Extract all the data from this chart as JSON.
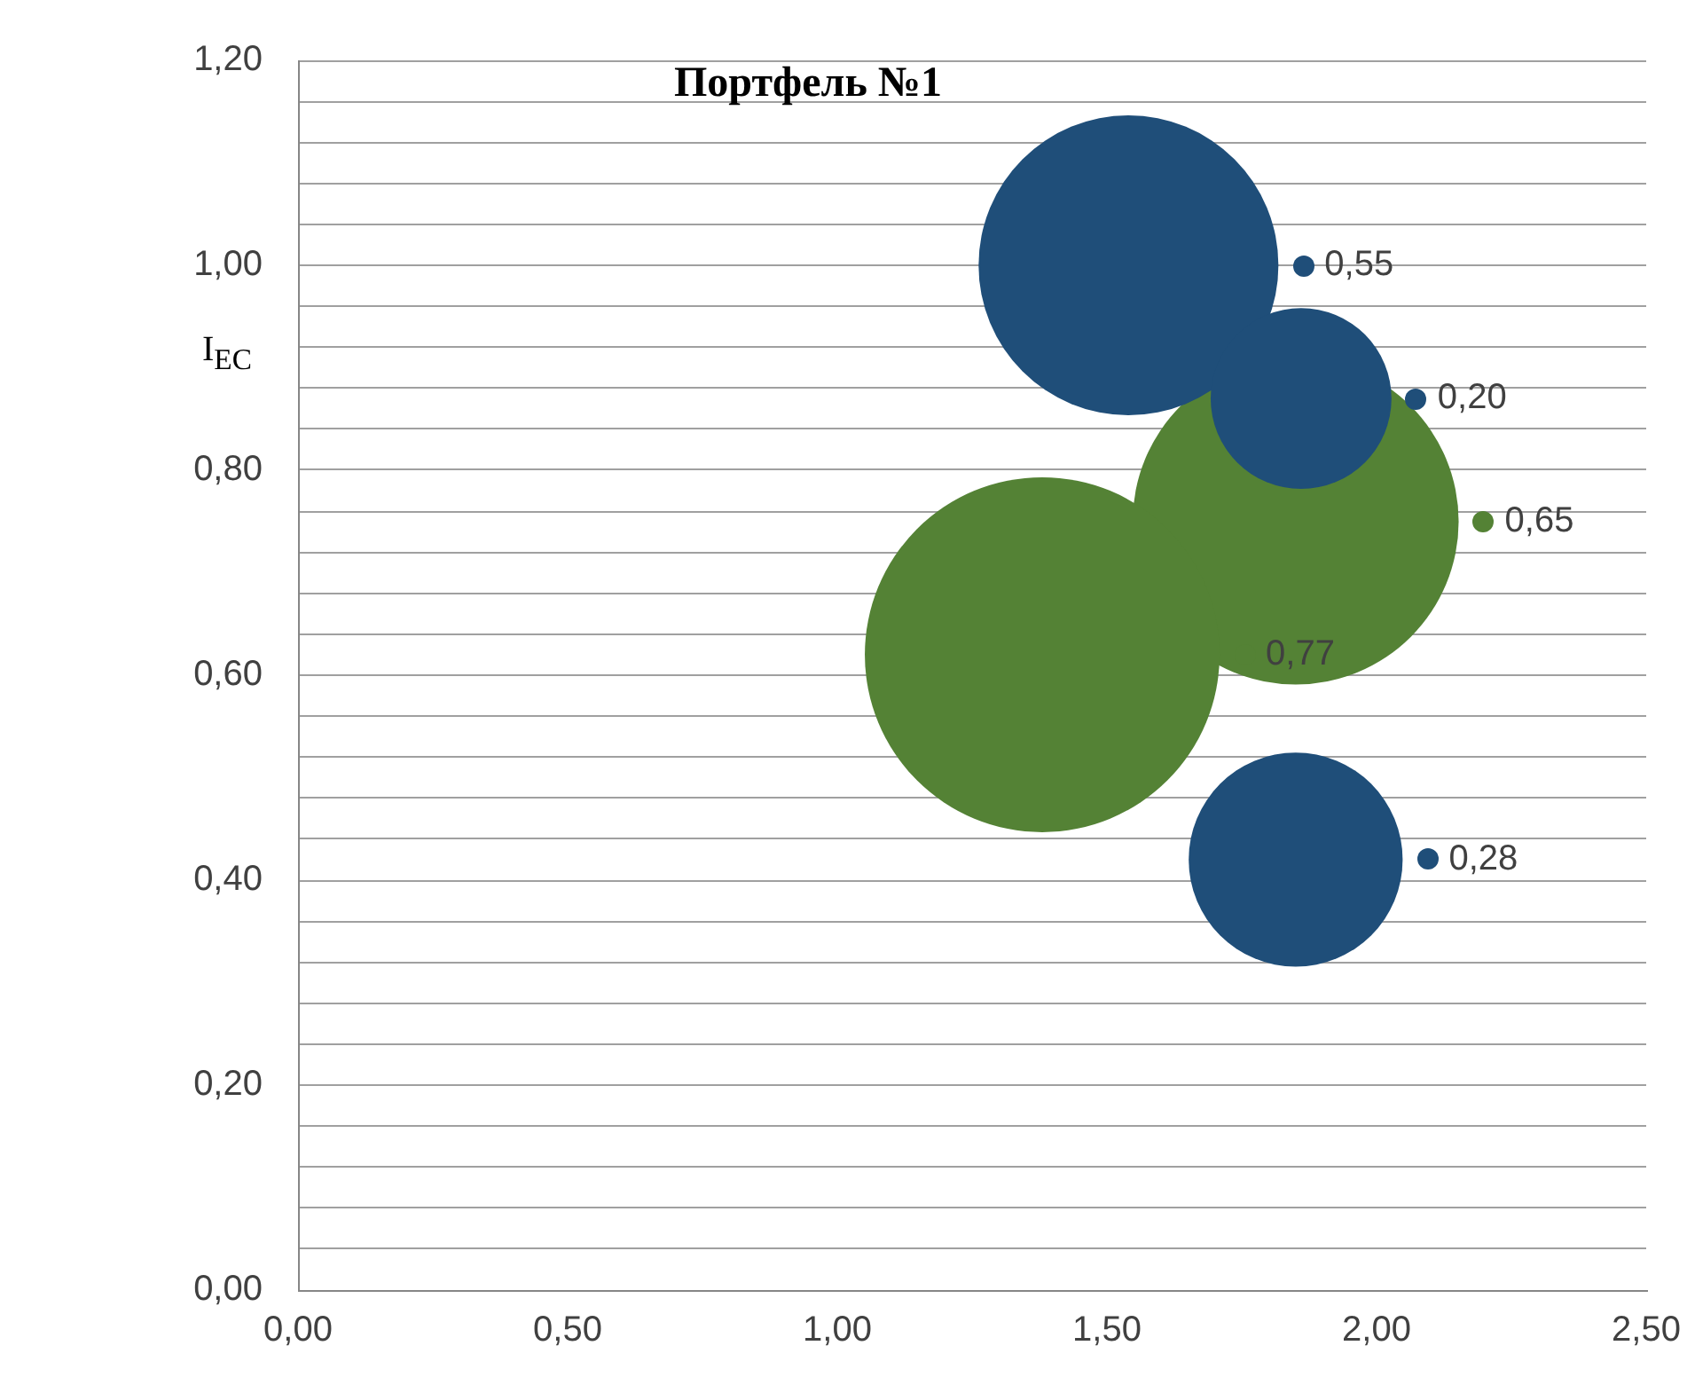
{
  "chart_data": {
    "type": "bubble",
    "title": "Портфель №1",
    "ylabel": "I$_{EC}$",
    "xlim": [
      0,
      2.5
    ],
    "xticks": [
      {
        "value": 0,
        "label": "0,00"
      },
      {
        "value": 0.5,
        "label": "0,50"
      },
      {
        "value": 1,
        "label": "1,00"
      },
      {
        "value": 1.5,
        "label": "1,50"
      },
      {
        "value": 2,
        "label": "2,00"
      },
      {
        "value": 2.5,
        "label": "2,50"
      }
    ],
    "ylim": [
      0,
      1.2
    ],
    "yticks": [
      {
        "value": 0,
        "label": "0,00"
      },
      {
        "value": 0.04,
        "label": null
      },
      {
        "value": 0.08,
        "label": null
      },
      {
        "value": 0.12,
        "label": null
      },
      {
        "value": 0.16,
        "label": null
      },
      {
        "value": 0.2,
        "label": "0,20"
      },
      {
        "value": 0.24,
        "label": null
      },
      {
        "value": 0.28,
        "label": null
      },
      {
        "value": 0.32,
        "label": null
      },
      {
        "value": 0.36,
        "label": null
      },
      {
        "value": 0.4,
        "label": "0,40"
      },
      {
        "value": 0.44,
        "label": null
      },
      {
        "value": 0.48,
        "label": null
      },
      {
        "value": 0.52,
        "label": null
      },
      {
        "value": 0.56,
        "label": null
      },
      {
        "value": 0.6,
        "label": "0,60"
      },
      {
        "value": 0.64,
        "label": null
      },
      {
        "value": 0.68,
        "label": null
      },
      {
        "value": 0.72,
        "label": null
      },
      {
        "value": 0.76,
        "label": null
      },
      {
        "value": 0.8,
        "label": "0,80"
      },
      {
        "value": 0.84,
        "label": null
      },
      {
        "value": 0.88,
        "label": null
      },
      {
        "value": 0.92,
        "label": null
      },
      {
        "value": 0.96,
        "label": null
      },
      {
        "value": 1,
        "label": "1,00"
      },
      {
        "value": 1.04,
        "label": null
      },
      {
        "value": 1.08,
        "label": null
      },
      {
        "value": 1.12,
        "label": null
      },
      {
        "value": 1.16,
        "label": null
      },
      {
        "value": 1.2,
        "label": "1,20"
      }
    ],
    "grid": "y",
    "legend": false,
    "series": [
      {
        "color": "#1f4e79",
        "x": [
          1.54,
          1.86,
          1.85
        ],
        "values": [
          1.0,
          0.87,
          0.42
        ],
        "sizes": [
          0.55,
          0.2,
          0.28
        ],
        "value_labels": [
          "0,55",
          "0,20",
          "0,28"
        ]
      },
      {
        "color": "#548235",
        "x": [
          1.85,
          1.38
        ],
        "values": [
          0.75,
          0.62
        ],
        "sizes": [
          0.65,
          0.77
        ],
        "value_labels": [
          "0,65",
          "0,77"
        ]
      }
    ]
  }
}
